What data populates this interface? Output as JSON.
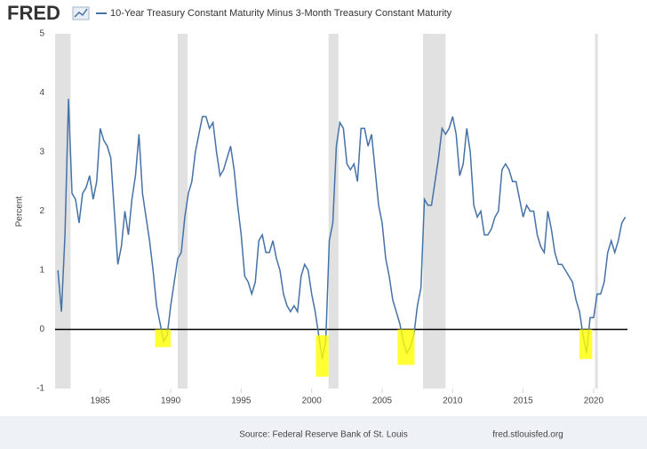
{
  "chart_data": {
    "type": "line",
    "brand": "FRED",
    "y_label": "Percent",
    "source": "Source: Federal Reserve Bank of St. Louis",
    "site": "fred.stlouisfed.org",
    "x": [
      1982,
      1982.25,
      1982.5,
      1982.75,
      1983,
      1983.25,
      1983.5,
      1983.75,
      1984,
      1984.25,
      1984.5,
      1984.75,
      1985,
      1985.25,
      1985.5,
      1985.75,
      1986,
      1986.25,
      1986.5,
      1986.75,
      1987,
      1987.25,
      1987.5,
      1987.75,
      1988,
      1988.25,
      1988.5,
      1988.75,
      1989,
      1989.25,
      1989.5,
      1989.75,
      1990,
      1990.25,
      1990.5,
      1990.75,
      1991,
      1991.25,
      1991.5,
      1991.75,
      1992,
      1992.25,
      1992.5,
      1992.75,
      1993,
      1993.25,
      1993.5,
      1993.75,
      1994,
      1994.25,
      1994.5,
      1994.75,
      1995,
      1995.25,
      1995.5,
      1995.75,
      1996,
      1996.25,
      1996.5,
      1996.75,
      1997,
      1997.25,
      1997.5,
      1997.75,
      1998,
      1998.25,
      1998.5,
      1998.75,
      1999,
      1999.25,
      1999.5,
      1999.75,
      2000,
      2000.25,
      2000.5,
      2000.75,
      2001,
      2001.25,
      2001.5,
      2001.75,
      2002,
      2002.25,
      2002.5,
      2002.75,
      2003,
      2003.25,
      2003.5,
      2003.75,
      2004,
      2004.25,
      2004.5,
      2004.75,
      2005,
      2005.25,
      2005.5,
      2005.75,
      2006,
      2006.25,
      2006.5,
      2006.75,
      2007,
      2007.25,
      2007.5,
      2007.75,
      2008,
      2008.25,
      2008.5,
      2008.75,
      2009,
      2009.25,
      2009.5,
      2009.75,
      2010,
      2010.25,
      2010.5,
      2010.75,
      2011,
      2011.25,
      2011.5,
      2011.75,
      2012,
      2012.25,
      2012.5,
      2012.75,
      2013,
      2013.25,
      2013.5,
      2013.75,
      2014,
      2014.25,
      2014.5,
      2014.75,
      2015,
      2015.25,
      2015.5,
      2015.75,
      2016,
      2016.25,
      2016.5,
      2016.75,
      2017,
      2017.25,
      2017.5,
      2017.75,
      2018,
      2018.25,
      2018.5,
      2018.75,
      2019,
      2019.25,
      2019.5,
      2019.75,
      2020,
      2020.25,
      2020.5,
      2020.75,
      2021,
      2021.25,
      2021.5,
      2021.75,
      2022,
      2022.25
    ],
    "series": [
      {
        "name": "10-Year Treasury Constant Maturity Minus 3-Month Treasury Constant Maturity",
        "color": "#4572a7",
        "values": [
          1.0,
          0.3,
          1.6,
          3.9,
          2.3,
          2.2,
          1.8,
          2.3,
          2.4,
          2.6,
          2.2,
          2.5,
          3.4,
          3.2,
          3.1,
          2.9,
          2.0,
          1.1,
          1.4,
          2.0,
          1.6,
          2.2,
          2.6,
          3.3,
          2.3,
          1.9,
          1.5,
          1.0,
          0.4,
          0.1,
          -0.2,
          -0.1,
          0.4,
          0.8,
          1.2,
          1.3,
          1.9,
          2.3,
          2.5,
          3.0,
          3.3,
          3.6,
          3.6,
          3.4,
          3.5,
          3.0,
          2.6,
          2.7,
          2.9,
          3.1,
          2.7,
          2.1,
          1.6,
          0.9,
          0.8,
          0.6,
          0.8,
          1.5,
          1.6,
          1.3,
          1.3,
          1.5,
          1.2,
          1.0,
          0.6,
          0.4,
          0.3,
          0.4,
          0.3,
          0.9,
          1.1,
          1.0,
          0.6,
          0.3,
          -0.1,
          -0.5,
          -0.2,
          1.5,
          1.8,
          3.1,
          3.5,
          3.4,
          2.8,
          2.7,
          2.8,
          2.5,
          3.4,
          3.4,
          3.1,
          3.3,
          2.7,
          2.1,
          1.8,
          1.2,
          0.9,
          0.5,
          0.3,
          0.1,
          -0.2,
          -0.4,
          -0.3,
          -0.1,
          0.4,
          0.7,
          2.2,
          2.1,
          2.1,
          2.5,
          2.9,
          3.4,
          3.3,
          3.4,
          3.6,
          3.3,
          2.6,
          2.8,
          3.4,
          3.0,
          2.1,
          1.9,
          2.0,
          1.6,
          1.6,
          1.7,
          1.9,
          2.0,
          2.7,
          2.8,
          2.7,
          2.5,
          2.5,
          2.2,
          1.9,
          2.1,
          2.0,
          2.0,
          1.6,
          1.4,
          1.3,
          2.0,
          1.7,
          1.3,
          1.1,
          1.1,
          1.0,
          0.9,
          0.8,
          0.5,
          0.3,
          -0.1,
          -0.4,
          0.2,
          0.2,
          0.6,
          0.6,
          0.8,
          1.3,
          1.5,
          1.3,
          1.5,
          1.8,
          1.9
        ]
      }
    ],
    "recessions": [
      [
        1981.8,
        1982.9
      ],
      [
        1990.5,
        1991.2
      ],
      [
        2001.2,
        2001.9
      ],
      [
        2007.9,
        2009.5
      ],
      [
        2020.1,
        2020.3
      ]
    ],
    "highlights": [
      {
        "x": [
          1988.9,
          1990.0
        ],
        "y": [
          0,
          -0.3
        ]
      },
      {
        "x": [
          2000.3,
          2001.2
        ],
        "y": [
          -0.1,
          -0.8
        ]
      },
      {
        "x": [
          2006.1,
          2007.3
        ],
        "y": [
          0,
          -0.6
        ]
      },
      {
        "x": [
          2019.0,
          2019.9
        ],
        "y": [
          0,
          -0.5
        ]
      }
    ],
    "zero_line": 0,
    "xlim": [
      1981.8,
      2022.4
    ],
    "ylim": [
      -1,
      5
    ],
    "xticks": [
      1985,
      1990,
      1995,
      2000,
      2005,
      2010,
      2015,
      2020
    ],
    "yticks": [
      -1,
      0,
      1,
      2,
      3,
      4,
      5
    ],
    "grid": false
  }
}
